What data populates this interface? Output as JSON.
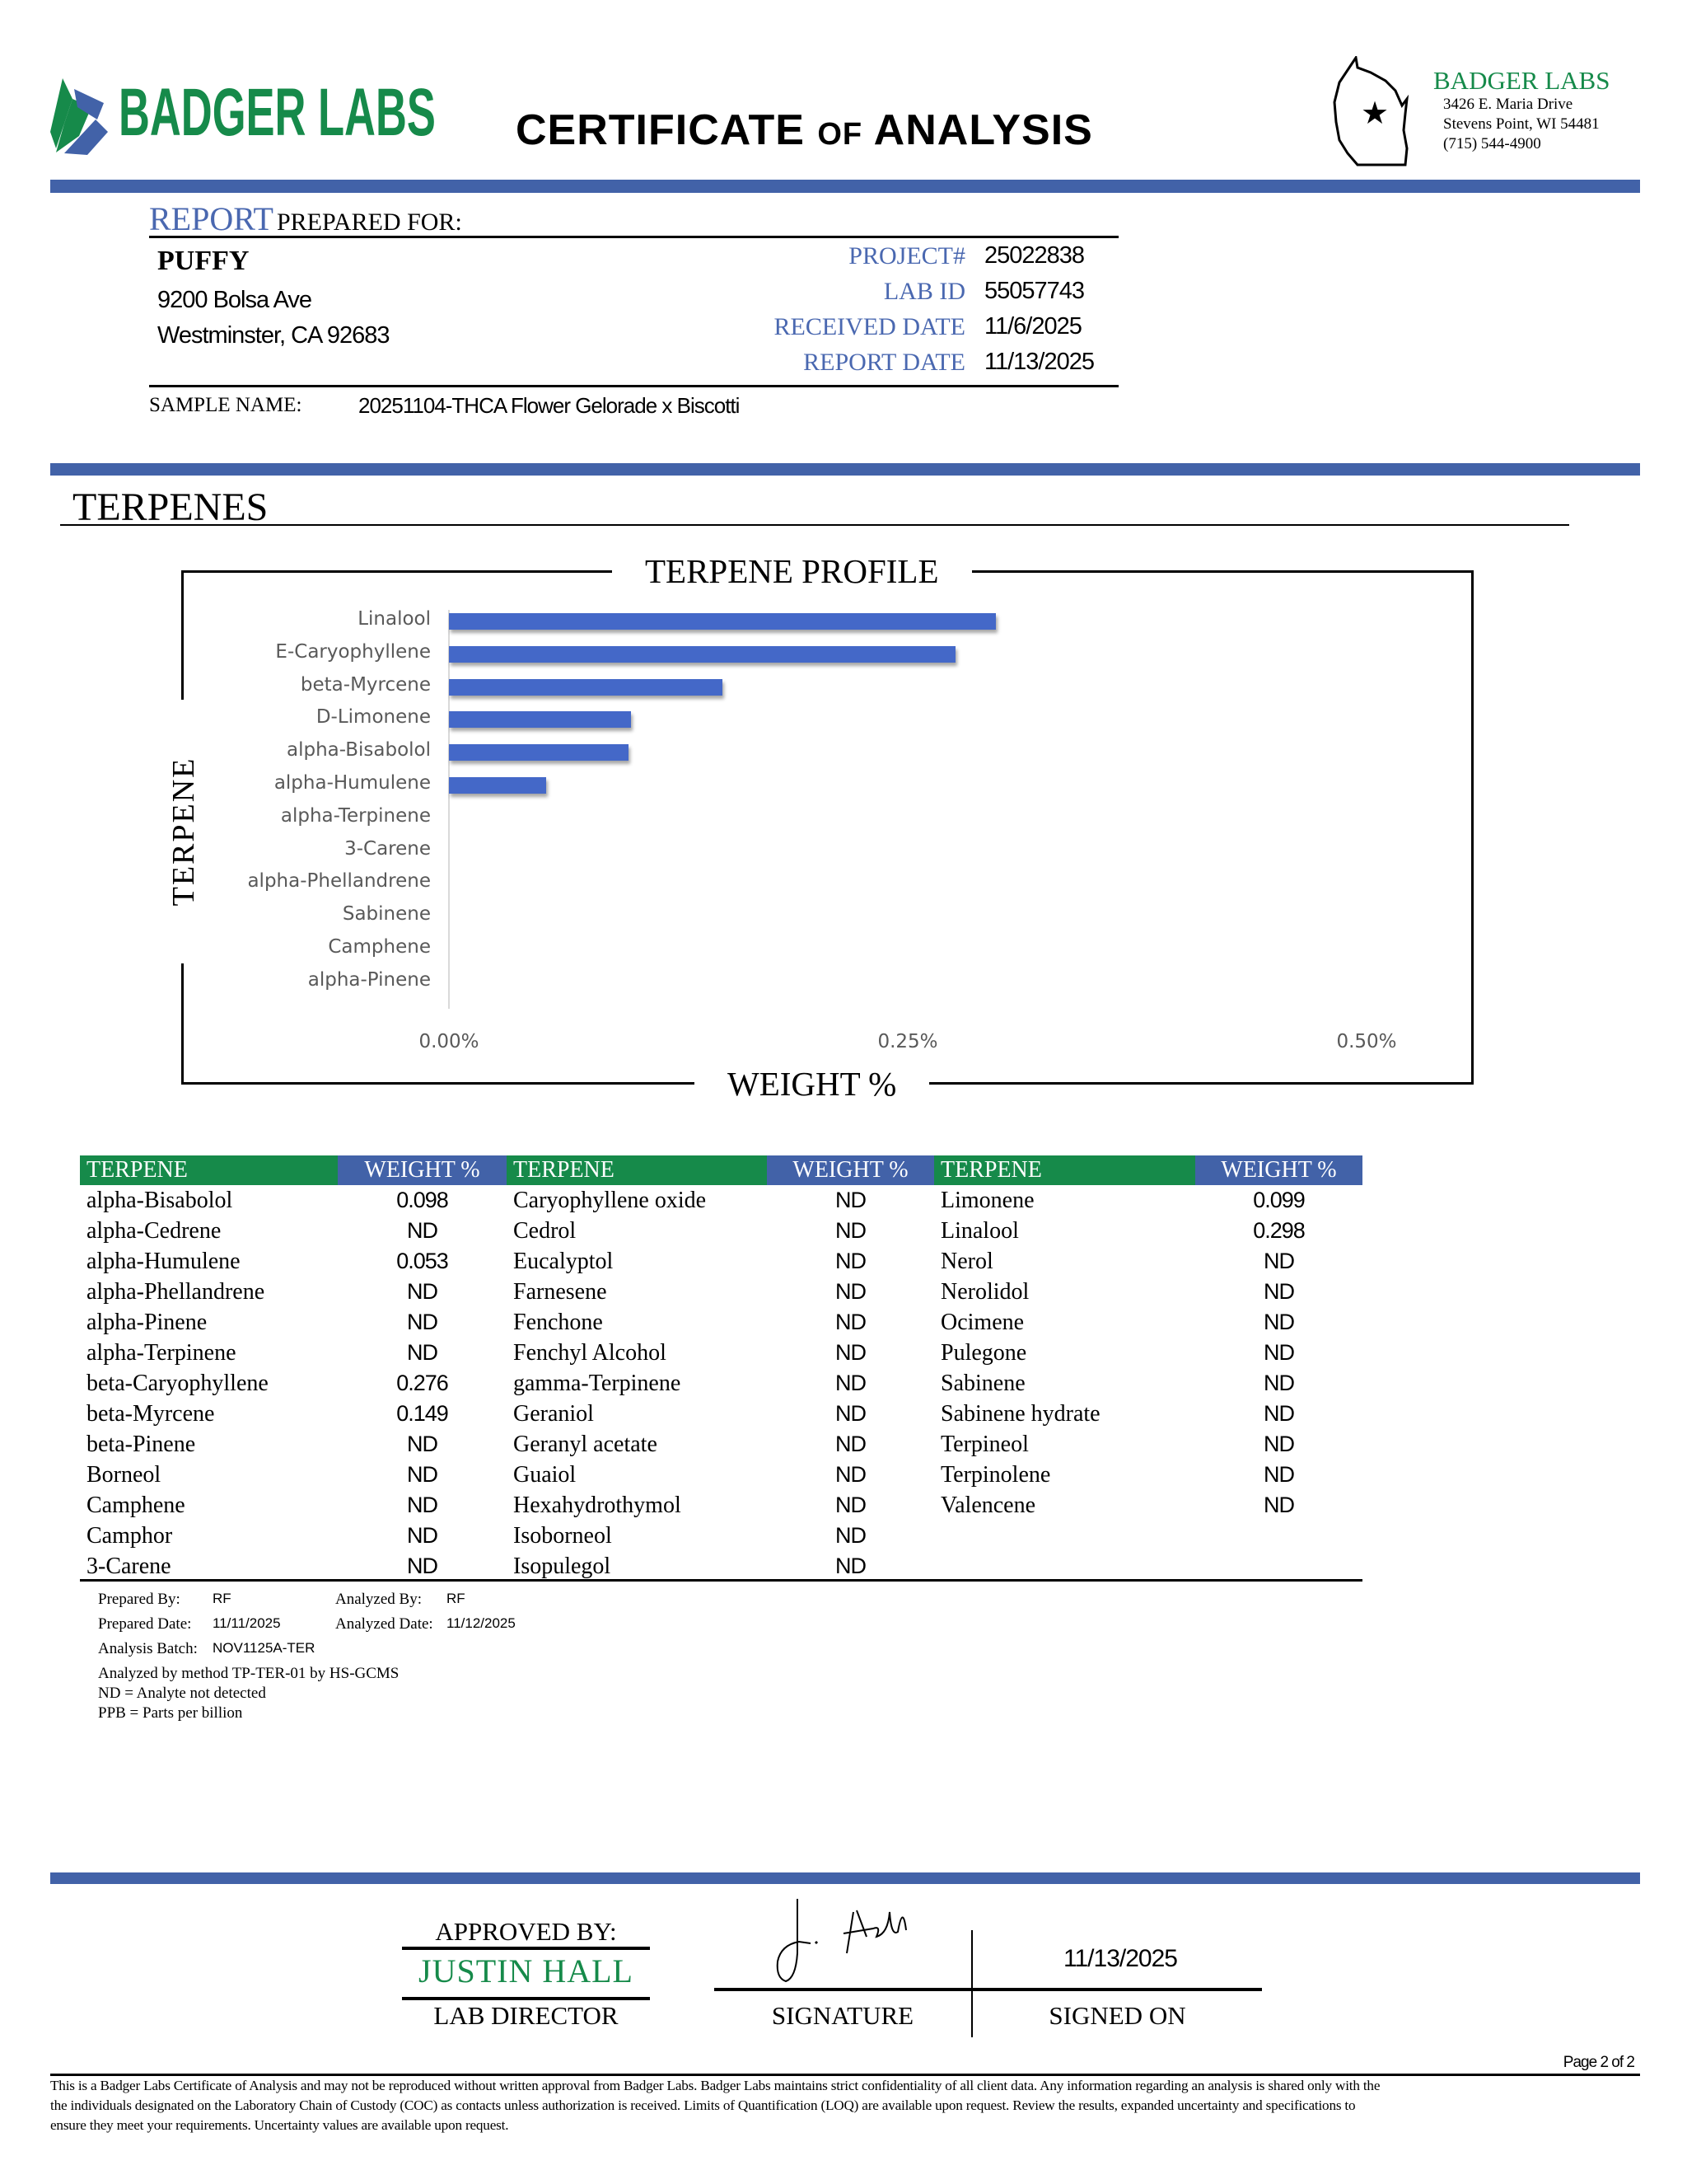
{
  "header": {
    "logo_text": "BADGER LABS",
    "title_part1": "CERTIFICATE",
    "title_part2": "OF",
    "title_part3": "ANALYSIS",
    "lab_name": "BADGER LABS",
    "address_line1": "3426 E. Maria Drive",
    "address_line2": "Stevens Point, WI 54481",
    "phone": "(715) 544-4900"
  },
  "client": {
    "heading_report": "REPORT",
    "heading_rest": "PREPARED FOR:",
    "name": "PUFFY",
    "address1": "9200 Bolsa Ave",
    "address2": "Westminster, CA 92683",
    "fields": [
      {
        "label": "PROJECT#",
        "value": "25022838"
      },
      {
        "label": "LAB ID",
        "value": "55057743"
      },
      {
        "label": "RECEIVED DATE",
        "value": "11/6/2025"
      },
      {
        "label": "REPORT DATE",
        "value": "11/13/2025"
      }
    ],
    "sample_label": "SAMPLE NAME:",
    "sample_value": "20251104-THCA Flower Gelorade x Biscotti"
  },
  "section_title": "TERPENES",
  "chart_data": {
    "type": "bar",
    "orientation": "horizontal",
    "title": "TERPENE PROFILE",
    "xlabel": "WEIGHT %",
    "ylabel": "TERPENE",
    "categories": [
      "Linalool",
      "E-Caryophyllene",
      "beta-Myrcene",
      "D-Limonene",
      "alpha-Bisabolol",
      "alpha-Humulene",
      "alpha-Terpinene",
      "3-Carene",
      "alpha-Phellandrene",
      "Sabinene",
      "Camphene",
      "alpha-Pinene"
    ],
    "values": [
      0.298,
      0.276,
      0.149,
      0.099,
      0.098,
      0.053,
      0,
      0,
      0,
      0,
      0,
      0
    ],
    "xlim": [
      0,
      0.5
    ],
    "xticks": [
      "0.00%",
      "0.25%",
      "0.50%"
    ],
    "grid": false,
    "bar_color": "#4468c8"
  },
  "table": {
    "header_terpene": "TERPENE",
    "header_weight": "WEIGHT %",
    "columns": [
      [
        [
          "alpha-Bisabolol",
          "0.098"
        ],
        [
          "alpha-Cedrene",
          "ND"
        ],
        [
          "alpha-Humulene",
          "0.053"
        ],
        [
          "alpha-Phellandrene",
          "ND"
        ],
        [
          "alpha-Pinene",
          "ND"
        ],
        [
          "alpha-Terpinene",
          "ND"
        ],
        [
          "beta-Caryophyllene",
          "0.276"
        ],
        [
          "beta-Myrcene",
          "0.149"
        ],
        [
          "beta-Pinene",
          "ND"
        ],
        [
          "Borneol",
          "ND"
        ],
        [
          "Camphene",
          "ND"
        ],
        [
          "Camphor",
          "ND"
        ],
        [
          "3-Carene",
          "ND"
        ]
      ],
      [
        [
          "Caryophyllene oxide",
          "ND"
        ],
        [
          "Cedrol",
          "ND"
        ],
        [
          "Eucalyptol",
          "ND"
        ],
        [
          "Farnesene",
          "ND"
        ],
        [
          "Fenchone",
          "ND"
        ],
        [
          "Fenchyl Alcohol",
          "ND"
        ],
        [
          "gamma-Terpinene",
          "ND"
        ],
        [
          "Geraniol",
          "ND"
        ],
        [
          "Geranyl acetate",
          "ND"
        ],
        [
          "Guaiol",
          "ND"
        ],
        [
          "Hexahydrothymol",
          "ND"
        ],
        [
          "Isoborneol",
          "ND"
        ],
        [
          "Isopulegol",
          "ND"
        ]
      ],
      [
        [
          "Limonene",
          "0.099"
        ],
        [
          "Linalool",
          "0.298"
        ],
        [
          "Nerol",
          "ND"
        ],
        [
          "Nerolidol",
          "ND"
        ],
        [
          "Ocimene",
          "ND"
        ],
        [
          "Pulegone",
          "ND"
        ],
        [
          "Sabinene",
          "ND"
        ],
        [
          "Sabinene hydrate",
          "ND"
        ],
        [
          "Terpineol",
          "ND"
        ],
        [
          "Terpinolene",
          "ND"
        ],
        [
          "Valencene",
          "ND"
        ]
      ]
    ]
  },
  "notes": {
    "prepared_by_label": "Prepared By:",
    "prepared_by": "RF",
    "analyzed_by_label": "Analyzed By:",
    "analyzed_by": "RF",
    "prepared_date_label": "Prepared Date:",
    "prepared_date": "11/11/2025",
    "analyzed_date_label": "Analyzed Date:",
    "analyzed_date": "11/12/2025",
    "batch_label": "Analysis Batch:",
    "batch": "NOV1125A-TER",
    "method": "Analyzed by method TP-TER-01 by HS-GCMS",
    "nd": "ND = Analyte not detected",
    "ppb": "PPB = Parts per billion"
  },
  "approval": {
    "approved_by": "APPROVED BY:",
    "name": "JUSTIN HALL",
    "role": "LAB DIRECTOR",
    "signature_label": "SIGNATURE",
    "signed_on_label": "SIGNED ON",
    "signed_on": "11/13/2025",
    "signature_text": "J. Hall"
  },
  "footer": {
    "page": "Page 2 of 2",
    "line1": "This is a Badger Labs Certificate of Analysis and may not be reproduced without written approval from Badger Labs. Badger Labs maintains strict confidentiality of all client data. Any information regarding an analysis is shared only with the",
    "line2": "the individuals designated on the Laboratory Chain of Custody (COC) as contacts unless authorization is received. Limits of Quantification (LOQ) are available upon request. Review the results, expanded uncertainty and specifications to",
    "line3": "ensure they meet your requirements. Uncertainty values are available upon request."
  },
  "colors": {
    "brand_green": "#168a4a",
    "brand_blue": "#4262a8"
  }
}
